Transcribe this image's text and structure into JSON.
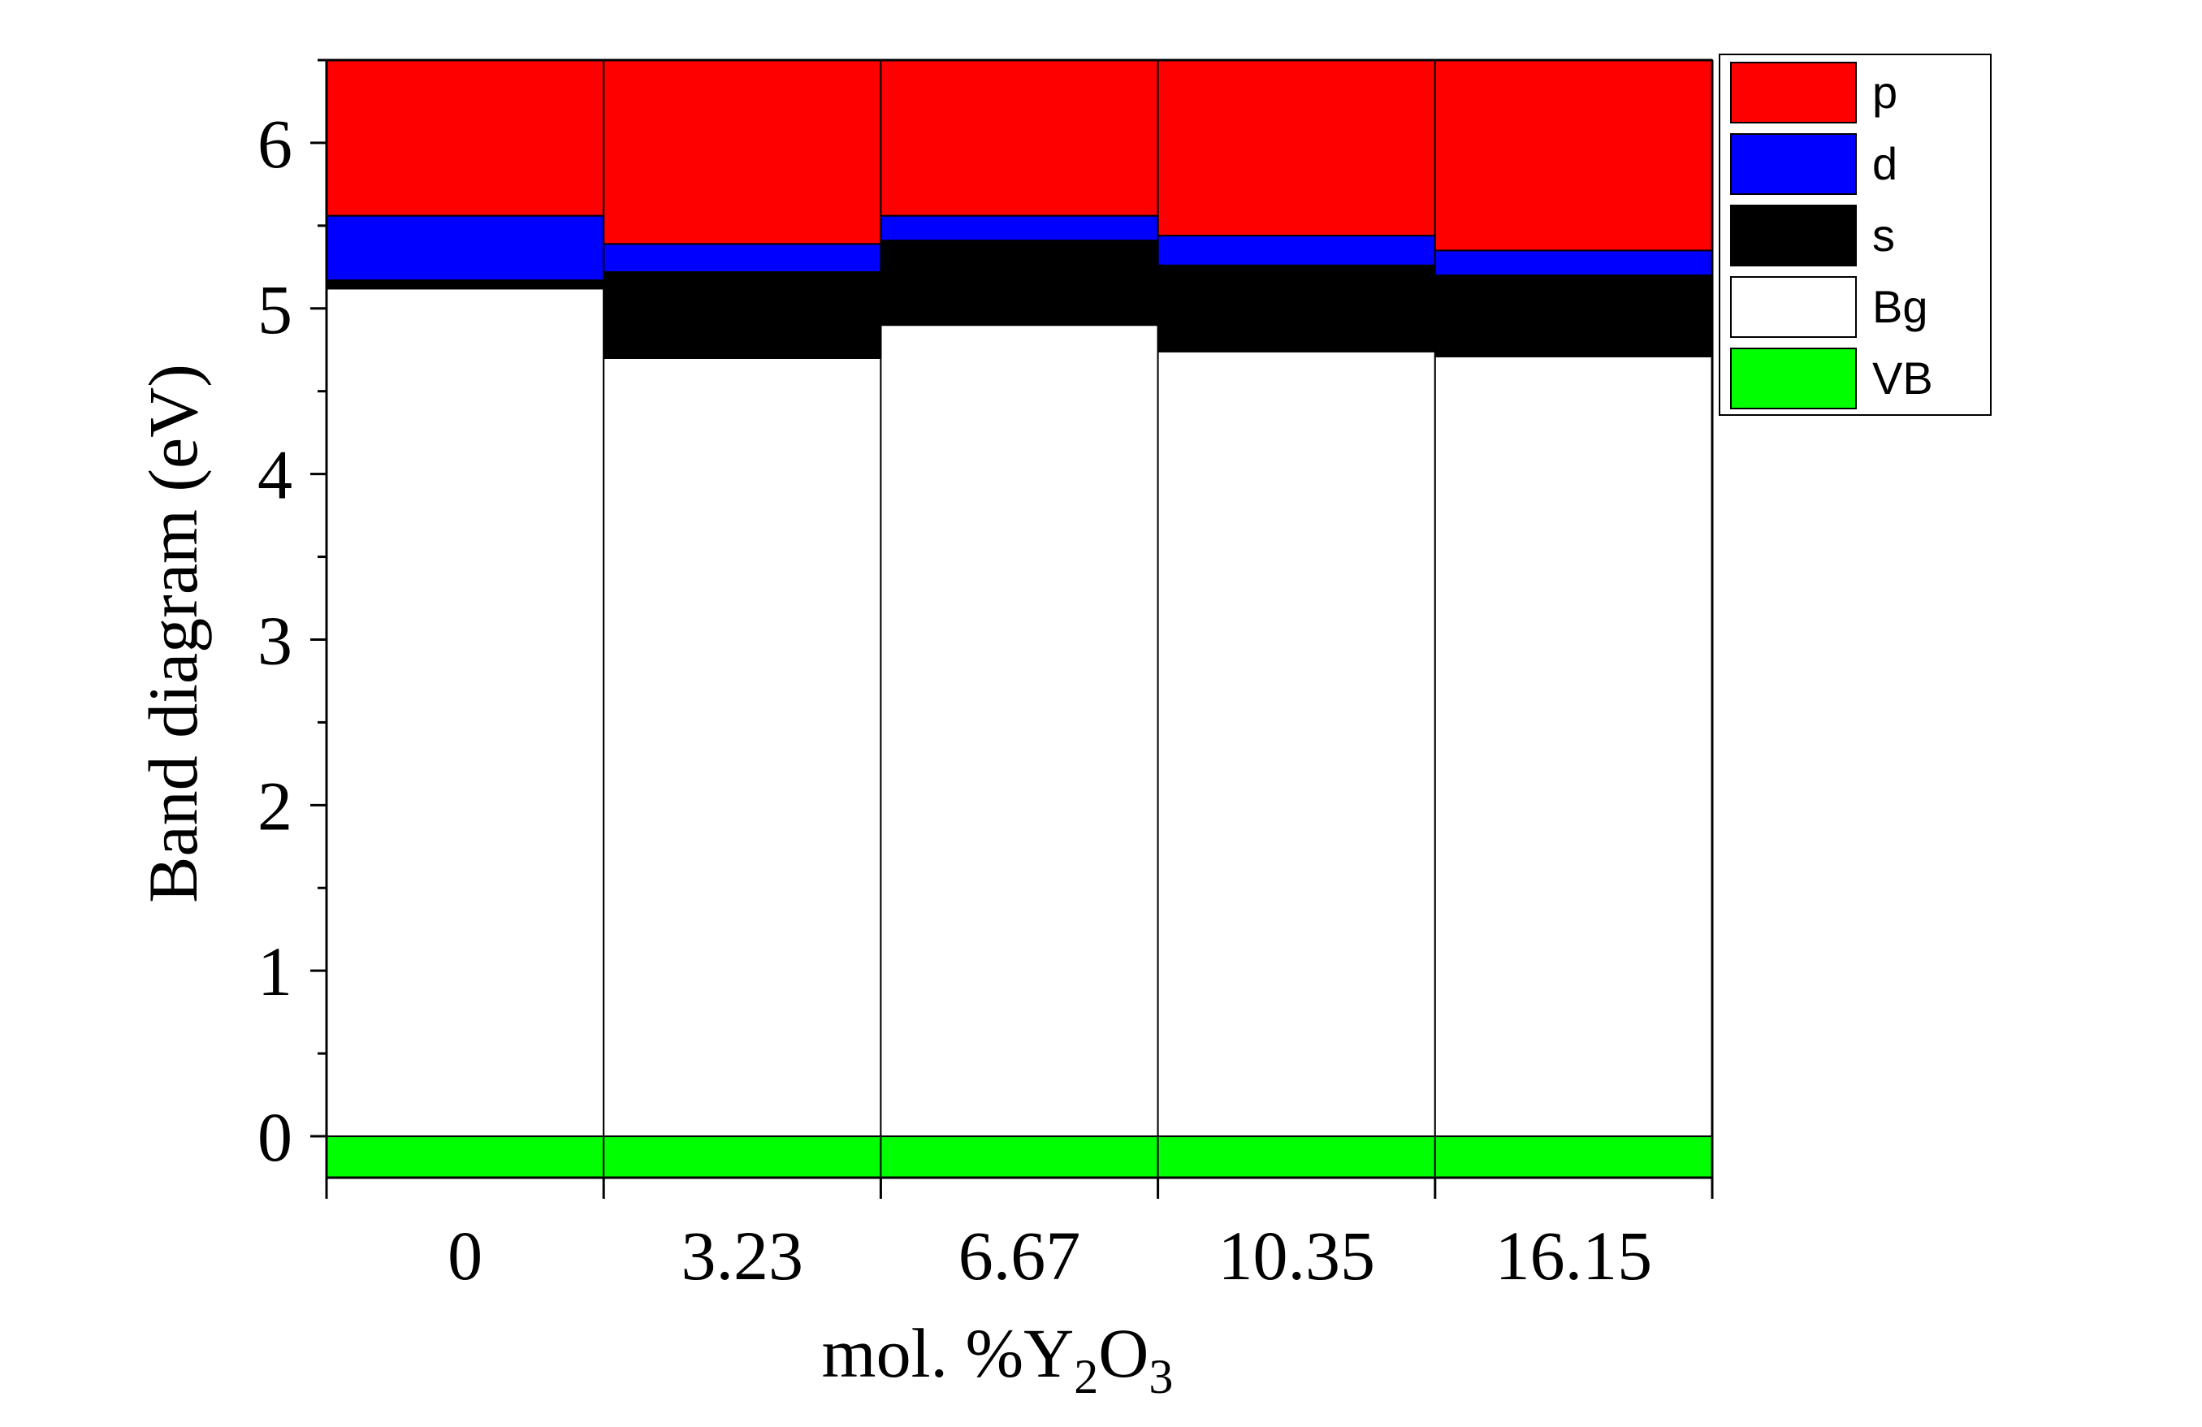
{
  "chart_data": {
    "type": "bar",
    "stacked": true,
    "xlabel": "mol. %Y2O3",
    "xlabel_parts": {
      "pre": "mol. %Y",
      "sub1": "2",
      "mid": "O",
      "sub2": "3"
    },
    "ylabel": "Band diagram (eV)",
    "ylim": [
      -0.25,
      6.5
    ],
    "yticks": [
      "0",
      "1",
      "2",
      "3",
      "4",
      "5",
      "6"
    ],
    "grid": false,
    "legend_position": "top-right, outside plot",
    "categories": [
      "0",
      "3.23",
      "6.67",
      "10.35",
      "16.15"
    ],
    "series": [
      {
        "name": "VB",
        "color": "#00ff00",
        "bottom": [
          -0.25,
          -0.25,
          -0.25,
          -0.25,
          -0.25
        ],
        "top": [
          0,
          0,
          0,
          0,
          0
        ]
      },
      {
        "name": "Bg",
        "color": "#ffffff",
        "bottom": [
          0,
          0,
          0,
          0,
          0
        ],
        "top": [
          5.12,
          4.7,
          4.9,
          4.74,
          4.71
        ]
      },
      {
        "name": "s",
        "color": "#000000",
        "bottom": [
          5.12,
          4.7,
          4.9,
          4.74,
          4.71
        ],
        "top": [
          5.17,
          5.22,
          5.41,
          5.26,
          5.2
        ]
      },
      {
        "name": "d",
        "color": "#0000ff",
        "bottom": [
          5.17,
          5.22,
          5.41,
          5.26,
          5.2
        ],
        "top": [
          5.56,
          5.39,
          5.56,
          5.44,
          5.35
        ]
      },
      {
        "name": "p",
        "color": "#ff0000",
        "bottom": [
          5.56,
          5.39,
          5.56,
          5.44,
          5.35
        ],
        "top": [
          6.5,
          6.5,
          6.5,
          6.5,
          6.5
        ]
      }
    ],
    "legend": [
      {
        "name": "p",
        "color": "#ff0000"
      },
      {
        "name": "d",
        "color": "#0000ff"
      },
      {
        "name": "s",
        "color": "#000000"
      },
      {
        "name": "Bg",
        "color": "#ffffff"
      },
      {
        "name": "VB",
        "color": "#00ff00"
      }
    ]
  }
}
